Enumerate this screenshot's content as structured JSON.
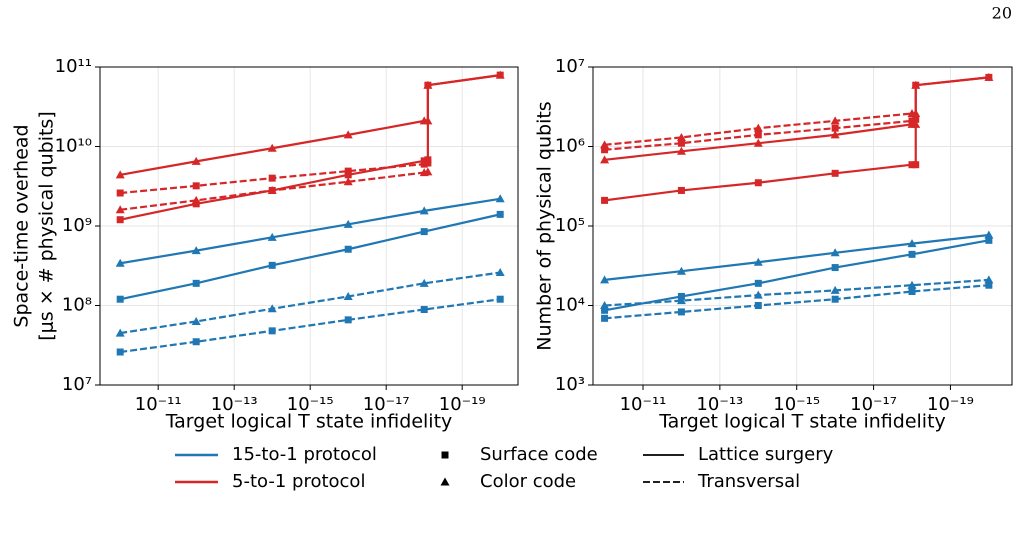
{
  "page_number": "20",
  "chart_data": [
    {
      "type": "line",
      "xlabel": "Target logical T state infidelity",
      "ylabel": [
        "Space-time overhead",
        "[μs × # physical qubits]"
      ],
      "xlog": true,
      "ylog": true,
      "grid": true,
      "xlim": [
        3.4e-10,
        3.4e-21
      ],
      "ylim": [
        10000000.0,
        100000000000.0
      ],
      "xticks": [
        {
          "value": 1e-11,
          "label": "10⁻¹¹"
        },
        {
          "value": 1e-13,
          "label": "10⁻¹³"
        },
        {
          "value": 1e-15,
          "label": "10⁻¹⁵"
        },
        {
          "value": 1e-17,
          "label": "10⁻¹⁷"
        },
        {
          "value": 1e-19,
          "label": "10⁻¹⁹"
        }
      ],
      "yticks": [
        {
          "value": 10000000.0,
          "label": "10⁷"
        },
        {
          "value": 100000000.0,
          "label": "10⁸"
        },
        {
          "value": 1000000000.0,
          "label": "10⁹"
        },
        {
          "value": 10000000000.0,
          "label": "10¹⁰"
        },
        {
          "value": 100000000000.0,
          "label": "10¹¹"
        }
      ],
      "series": [
        {
          "color": "#d62728",
          "marker": "triangle",
          "dash": "solid",
          "x": [
            1e-10,
            1e-12,
            1e-14,
            1e-16,
            1e-18,
            8e-19,
            8e-19,
            1e-20
          ],
          "values": [
            4400000000.0,
            6500000000.0,
            9500000000.0,
            14000000000.0,
            21000000000.0,
            21000000000.0,
            59000000000.0,
            79000000000.0
          ]
        },
        {
          "color": "#d62728",
          "marker": "square",
          "dash": "solid",
          "x": [
            1e-10,
            1e-12,
            1e-14,
            1e-16,
            1e-18,
            8e-19,
            8e-19,
            1e-20
          ],
          "values": [
            1200000000.0,
            1900000000.0,
            2800000000.0,
            4400000000.0,
            6600000000.0,
            6800000000.0,
            59000000000.0,
            79000000000.0
          ]
        },
        {
          "color": "#d62728",
          "marker": "square",
          "dash": "dashed",
          "x": [
            1e-10,
            1e-12,
            1e-14,
            1e-16,
            1e-18,
            8e-19
          ],
          "values": [
            2600000000.0,
            3200000000.0,
            4000000000.0,
            4900000000.0,
            6000000000.0,
            6200000000.0
          ]
        },
        {
          "color": "#d62728",
          "marker": "triangle",
          "dash": "dashed",
          "x": [
            1e-10,
            1e-12,
            1e-14,
            1e-16,
            1e-18,
            8e-19
          ],
          "values": [
            1600000000.0,
            2100000000.0,
            2800000000.0,
            3600000000.0,
            4700000000.0,
            4800000000.0
          ]
        },
        {
          "color": "#1f77b4",
          "marker": "triangle",
          "dash": "solid",
          "x": [
            1e-10,
            1e-12,
            1e-14,
            1e-16,
            1e-18,
            1e-20
          ],
          "values": [
            340000000.0,
            490000000.0,
            720000000.0,
            1050000000.0,
            1550000000.0,
            2200000000.0
          ]
        },
        {
          "color": "#1f77b4",
          "marker": "square",
          "dash": "solid",
          "x": [
            1e-10,
            1e-12,
            1e-14,
            1e-16,
            1e-18,
            1e-20
          ],
          "values": [
            120000000.0,
            190000000.0,
            320000000.0,
            510000000.0,
            850000000.0,
            1400000000.0
          ]
        },
        {
          "color": "#1f77b4",
          "marker": "triangle",
          "dash": "dashed",
          "x": [
            1e-10,
            1e-12,
            1e-14,
            1e-16,
            1e-18,
            1e-20
          ],
          "values": [
            45000000.0,
            63000000.0,
            91000000.0,
            130000000.0,
            190000000.0,
            260000000.0
          ]
        },
        {
          "color": "#1f77b4",
          "marker": "square",
          "dash": "dashed",
          "x": [
            1e-10,
            1e-12,
            1e-14,
            1e-16,
            1e-18,
            1e-20
          ],
          "values": [
            26000000.0,
            35000000.0,
            48000000.0,
            66000000.0,
            89000000.0,
            120000000.0
          ]
        }
      ]
    },
    {
      "type": "line",
      "xlabel": "Target logical T state infidelity",
      "ylabel": [
        "Number of physical qubits"
      ],
      "xlog": true,
      "ylog": true,
      "grid": true,
      "xlim": [
        2e-10,
        2.5e-21
      ],
      "ylim": [
        1000.0,
        10000000.0
      ],
      "xticks": [
        {
          "value": 1e-11,
          "label": "10⁻¹¹"
        },
        {
          "value": 1e-13,
          "label": "10⁻¹³"
        },
        {
          "value": 1e-15,
          "label": "10⁻¹⁵"
        },
        {
          "value": 1e-17,
          "label": "10⁻¹⁷"
        },
        {
          "value": 1e-19,
          "label": "10⁻¹⁹"
        }
      ],
      "yticks": [
        {
          "value": 1000.0,
          "label": "10³"
        },
        {
          "value": 10000.0,
          "label": "10⁴"
        },
        {
          "value": 100000.0,
          "label": "10⁵"
        },
        {
          "value": 1000000.0,
          "label": "10⁶"
        },
        {
          "value": 10000000.0,
          "label": "10⁷"
        }
      ],
      "series": [
        {
          "color": "#d62728",
          "marker": "triangle",
          "dash": "dashed",
          "x": [
            1e-10,
            1e-12,
            1e-14,
            1e-16,
            1e-18,
            8e-19
          ],
          "values": [
            1050000.0,
            1300000.0,
            1700000.0,
            2100000.0,
            2600000.0,
            2600000.0
          ]
        },
        {
          "color": "#d62728",
          "marker": "square",
          "dash": "dashed",
          "x": [
            1e-10,
            1e-12,
            1e-14,
            1e-16,
            1e-18,
            8e-19
          ],
          "values": [
            910000.0,
            1100000.0,
            1400000.0,
            1700000.0,
            2100000.0,
            2200000.0
          ]
        },
        {
          "color": "#d62728",
          "marker": "triangle",
          "dash": "solid",
          "x": [
            1e-10,
            1e-12,
            1e-14,
            1e-16,
            1e-18,
            8e-19,
            8e-19,
            1e-20
          ],
          "values": [
            680000.0,
            870000.0,
            1100000.0,
            1400000.0,
            1900000.0,
            1900000.0,
            5900000.0,
            7400000.0
          ]
        },
        {
          "color": "#d62728",
          "marker": "square",
          "dash": "solid",
          "x": [
            1e-10,
            1e-12,
            1e-14,
            1e-16,
            1e-18,
            8e-19,
            8e-19,
            1e-20
          ],
          "values": [
            210000.0,
            280000.0,
            350000.0,
            460000.0,
            590000.0,
            590000.0,
            5900000.0,
            7400000.0
          ]
        },
        {
          "color": "#1f77b4",
          "marker": "triangle",
          "dash": "solid",
          "x": [
            1e-10,
            1e-12,
            1e-14,
            1e-16,
            1e-18,
            1e-20
          ],
          "values": [
            21000.0,
            27000.0,
            35000.0,
            46000.0,
            60000.0,
            77000.0
          ]
        },
        {
          "color": "#1f77b4",
          "marker": "square",
          "dash": "solid",
          "x": [
            1e-10,
            1e-12,
            1e-14,
            1e-16,
            1e-18,
            1e-20
          ],
          "values": [
            8700.0,
            13000.0,
            19000.0,
            30000.0,
            44000.0,
            66000.0
          ]
        },
        {
          "color": "#1f77b4",
          "marker": "triangle",
          "dash": "dashed",
          "x": [
            1e-10,
            1e-12,
            1e-14,
            1e-16,
            1e-18,
            1e-20
          ],
          "values": [
            10000.0,
            11500.0,
            13500.0,
            15500.0,
            18000.0,
            21000.0
          ]
        },
        {
          "color": "#1f77b4",
          "marker": "square",
          "dash": "dashed",
          "x": [
            1e-10,
            1e-12,
            1e-14,
            1e-16,
            1e-18,
            1e-20
          ],
          "values": [
            6900.0,
            8300.0,
            10000.0,
            12000.0,
            15000.0,
            18000.0
          ]
        }
      ]
    }
  ],
  "legend": {
    "protocols": [
      {
        "label": "15-to-1 protocol",
        "color": "#1f77b4"
      },
      {
        "label": "5-to-1 protocol",
        "color": "#d62728"
      }
    ],
    "codes": [
      {
        "label": "Surface code",
        "marker": "square"
      },
      {
        "label": "Color code",
        "marker": "triangle"
      }
    ],
    "methods": [
      {
        "label": "Lattice surgery",
        "dash": "solid"
      },
      {
        "label": "Transversal",
        "dash": "dashed"
      }
    ]
  }
}
